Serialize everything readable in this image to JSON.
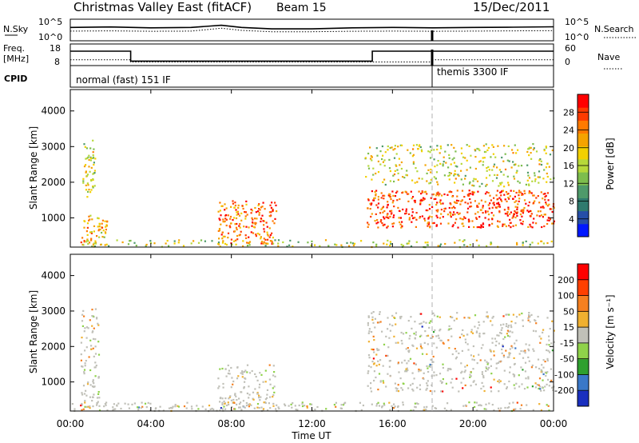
{
  "header": {
    "title": "Christmas Valley East (fitACF)",
    "beam": "Beam 15",
    "date": "15/Dec/2011"
  },
  "chart_data": [
    {
      "type": "line",
      "panel": "noise",
      "left_axis_label": "N.Sky",
      "left_ticks": [
        "10^5",
        "10^0"
      ],
      "right_axis_label": "N.Search",
      "right_ticks": [
        "10^5",
        "10^0"
      ],
      "x_range_hours": [
        0,
        24
      ],
      "series": [
        {
          "name": "N.Sky",
          "style": "solid",
          "x": [
            0,
            2,
            4,
            6,
            7.5,
            8.5,
            10,
            12,
            14,
            16,
            18,
            20,
            22,
            24
          ],
          "y_frac": [
            0.62,
            0.64,
            0.6,
            0.62,
            0.72,
            0.62,
            0.55,
            0.55,
            0.6,
            0.62,
            0.6,
            0.62,
            0.63,
            0.65
          ]
        },
        {
          "name": "N.Search",
          "style": "dotted",
          "x": [
            0,
            2,
            4,
            6,
            7.5,
            8.5,
            10,
            12,
            14,
            16,
            18,
            20,
            22,
            24
          ],
          "y_frac": [
            0.45,
            0.46,
            0.44,
            0.45,
            0.58,
            0.48,
            0.42,
            0.42,
            0.44,
            0.45,
            0.44,
            0.45,
            0.46,
            0.47
          ]
        }
      ]
    },
    {
      "type": "line",
      "panel": "frequency",
      "left_axis_label": "Freq.",
      "left_unit": "[MHz]",
      "left_ticks": [
        "18",
        "8"
      ],
      "right_axis_label": "Nave",
      "right_ticks": [
        "60",
        "0"
      ],
      "series": [
        {
          "name": "Freq.",
          "style": "solid",
          "x": [
            0,
            3,
            3,
            15,
            15,
            24
          ],
          "y_mhz": [
            14,
            14,
            8.5,
            8.5,
            14,
            14
          ]
        },
        {
          "name": "Nave",
          "style": "dotted",
          "x": [
            0,
            3,
            3,
            18,
            18,
            24
          ],
          "y_nave": [
            16,
            16,
            10,
            10,
            16,
            16
          ]
        }
      ]
    },
    {
      "type": "table",
      "panel": "cpid",
      "label": "CPID",
      "segments": [
        {
          "start": 0,
          "end": 18,
          "text": "normal (fast) 151 IF"
        },
        {
          "start": 18,
          "end": 24,
          "text": "themis 3300 IF"
        }
      ]
    },
    {
      "type": "heatmap",
      "panel": "power",
      "ylabel": "Slant Range [km]",
      "yticks": [
        1000,
        2000,
        3000,
        4000
      ],
      "ylim": [
        180,
        4600
      ],
      "colorbar_label": "Power [dB]",
      "colorbar_ticks": [
        "28",
        "24",
        "20",
        "16",
        "12",
        "8",
        "4"
      ],
      "colorbar_colors": [
        "#0018ff",
        "#264ea8",
        "#2f7a6e",
        "#4e9a6a",
        "#7dbd4d",
        "#b6d83a",
        "#f2d000",
        "#f5a300",
        "#ff7a00",
        "#ff3a00",
        "#ff0000"
      ],
      "echo_regions": [
        {
          "t0": 0.6,
          "t1": 1.2,
          "r0": 1600,
          "r1": 3200,
          "level": 0.45
        },
        {
          "t0": 0.5,
          "t1": 1.8,
          "r0": 250,
          "r1": 1100,
          "level": 0.6
        },
        {
          "t0": 7.3,
          "t1": 10.2,
          "r0": 280,
          "r1": 1500,
          "level": 0.8
        },
        {
          "t0": 14.7,
          "t1": 24,
          "r0": 750,
          "r1": 1800,
          "level": 0.9
        },
        {
          "t0": 14.6,
          "t1": 24,
          "r0": 1900,
          "r1": 3100,
          "level": 0.45
        },
        {
          "t0": 0,
          "t1": 24,
          "r0": 200,
          "r1": 400,
          "level": 0.4
        }
      ]
    },
    {
      "type": "heatmap",
      "panel": "velocity",
      "ylabel": "Slant Range [km]",
      "yticks": [
        1000,
        2000,
        3000,
        4000
      ],
      "ylim": [
        180,
        4600
      ],
      "colorbar_label": "Velocity [m s⁻¹]",
      "colorbar_ticks": [
        "200",
        "100",
        "50",
        "15",
        "-15",
        "-50",
        "-100",
        "-200"
      ],
      "colorbar_colors": [
        "#1a2fbf",
        "#3a78c8",
        "#2fa02f",
        "#8fd24a",
        "#c0c0b8",
        "#f0b030",
        "#f58020",
        "#ff4000",
        "#ff0000"
      ],
      "echo_regions": [
        {
          "t0": 0.5,
          "t1": 1.4,
          "r0": 300,
          "r1": 3100,
          "level": 0.45
        },
        {
          "t0": 7.3,
          "t1": 10.2,
          "r0": 280,
          "r1": 1500,
          "level": 0.45
        },
        {
          "t0": 14.7,
          "t1": 24,
          "r0": 750,
          "r1": 3000,
          "level": 0.45
        },
        {
          "t0": 0,
          "t1": 24,
          "r0": 200,
          "r1": 450,
          "level": 0.6
        }
      ]
    }
  ],
  "time_axis": {
    "xlabel": "Time UT",
    "ticks": [
      "00:00",
      "04:00",
      "08:00",
      "12:00",
      "16:00",
      "20:00",
      "00:00"
    ],
    "tick_hours": [
      0,
      4,
      8,
      12,
      16,
      20,
      24
    ]
  }
}
